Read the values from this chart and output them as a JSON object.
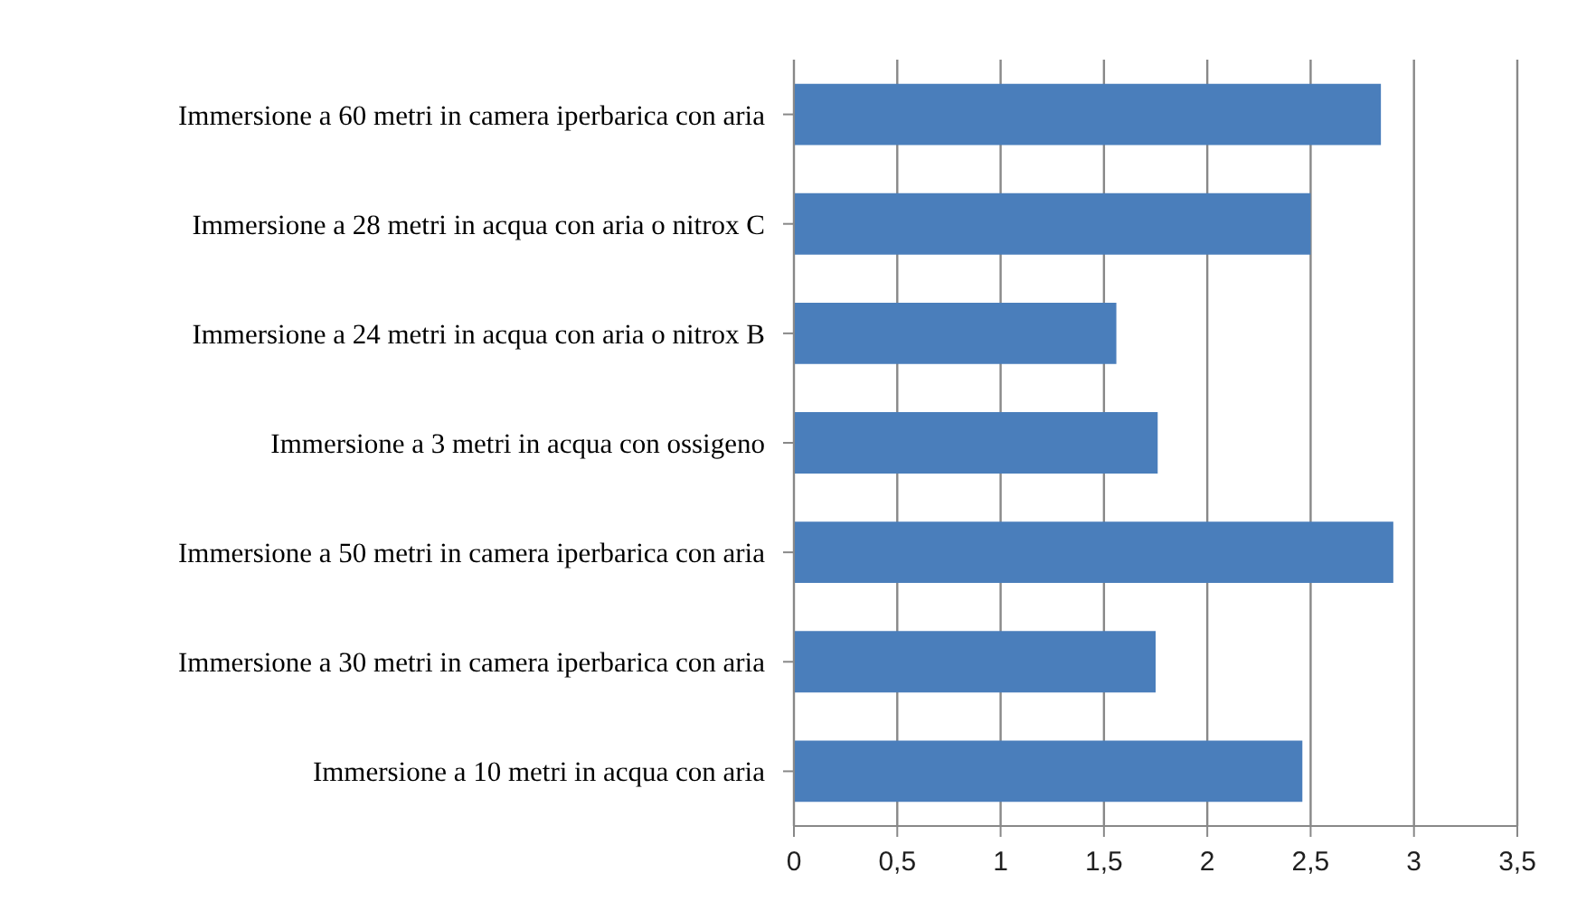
{
  "chart_data": {
    "type": "bar",
    "orientation": "horizontal",
    "categories": [
      "Immersione a 60 metri in camera iperbarica con aria",
      "Immersione a 28 metri in acqua con aria o nitrox C",
      "Immersione a 24 metri in acqua con aria o nitrox B",
      "Immersione a 3 metri in acqua con ossigeno",
      "Immersione a 50 metri in camera iperbarica con aria",
      "Immersione a 30 metri in camera iperbarica con aria",
      "Immersione a 10 metri in acqua con aria"
    ],
    "values": [
      2.84,
      2.5,
      1.56,
      1.76,
      2.9,
      1.75,
      2.46
    ],
    "color": "#4a7ebb",
    "xlim": [
      0,
      3.5
    ],
    "xticks": [
      0,
      {
        "value": 0.5,
        "label": "0,5"
      },
      1,
      {
        "value": 1.5,
        "label": "1,5"
      },
      2,
      {
        "value": 2.5,
        "label": "2,5"
      },
      3,
      {
        "value": 3.5,
        "label": "3,5"
      }
    ],
    "grid": "x"
  }
}
